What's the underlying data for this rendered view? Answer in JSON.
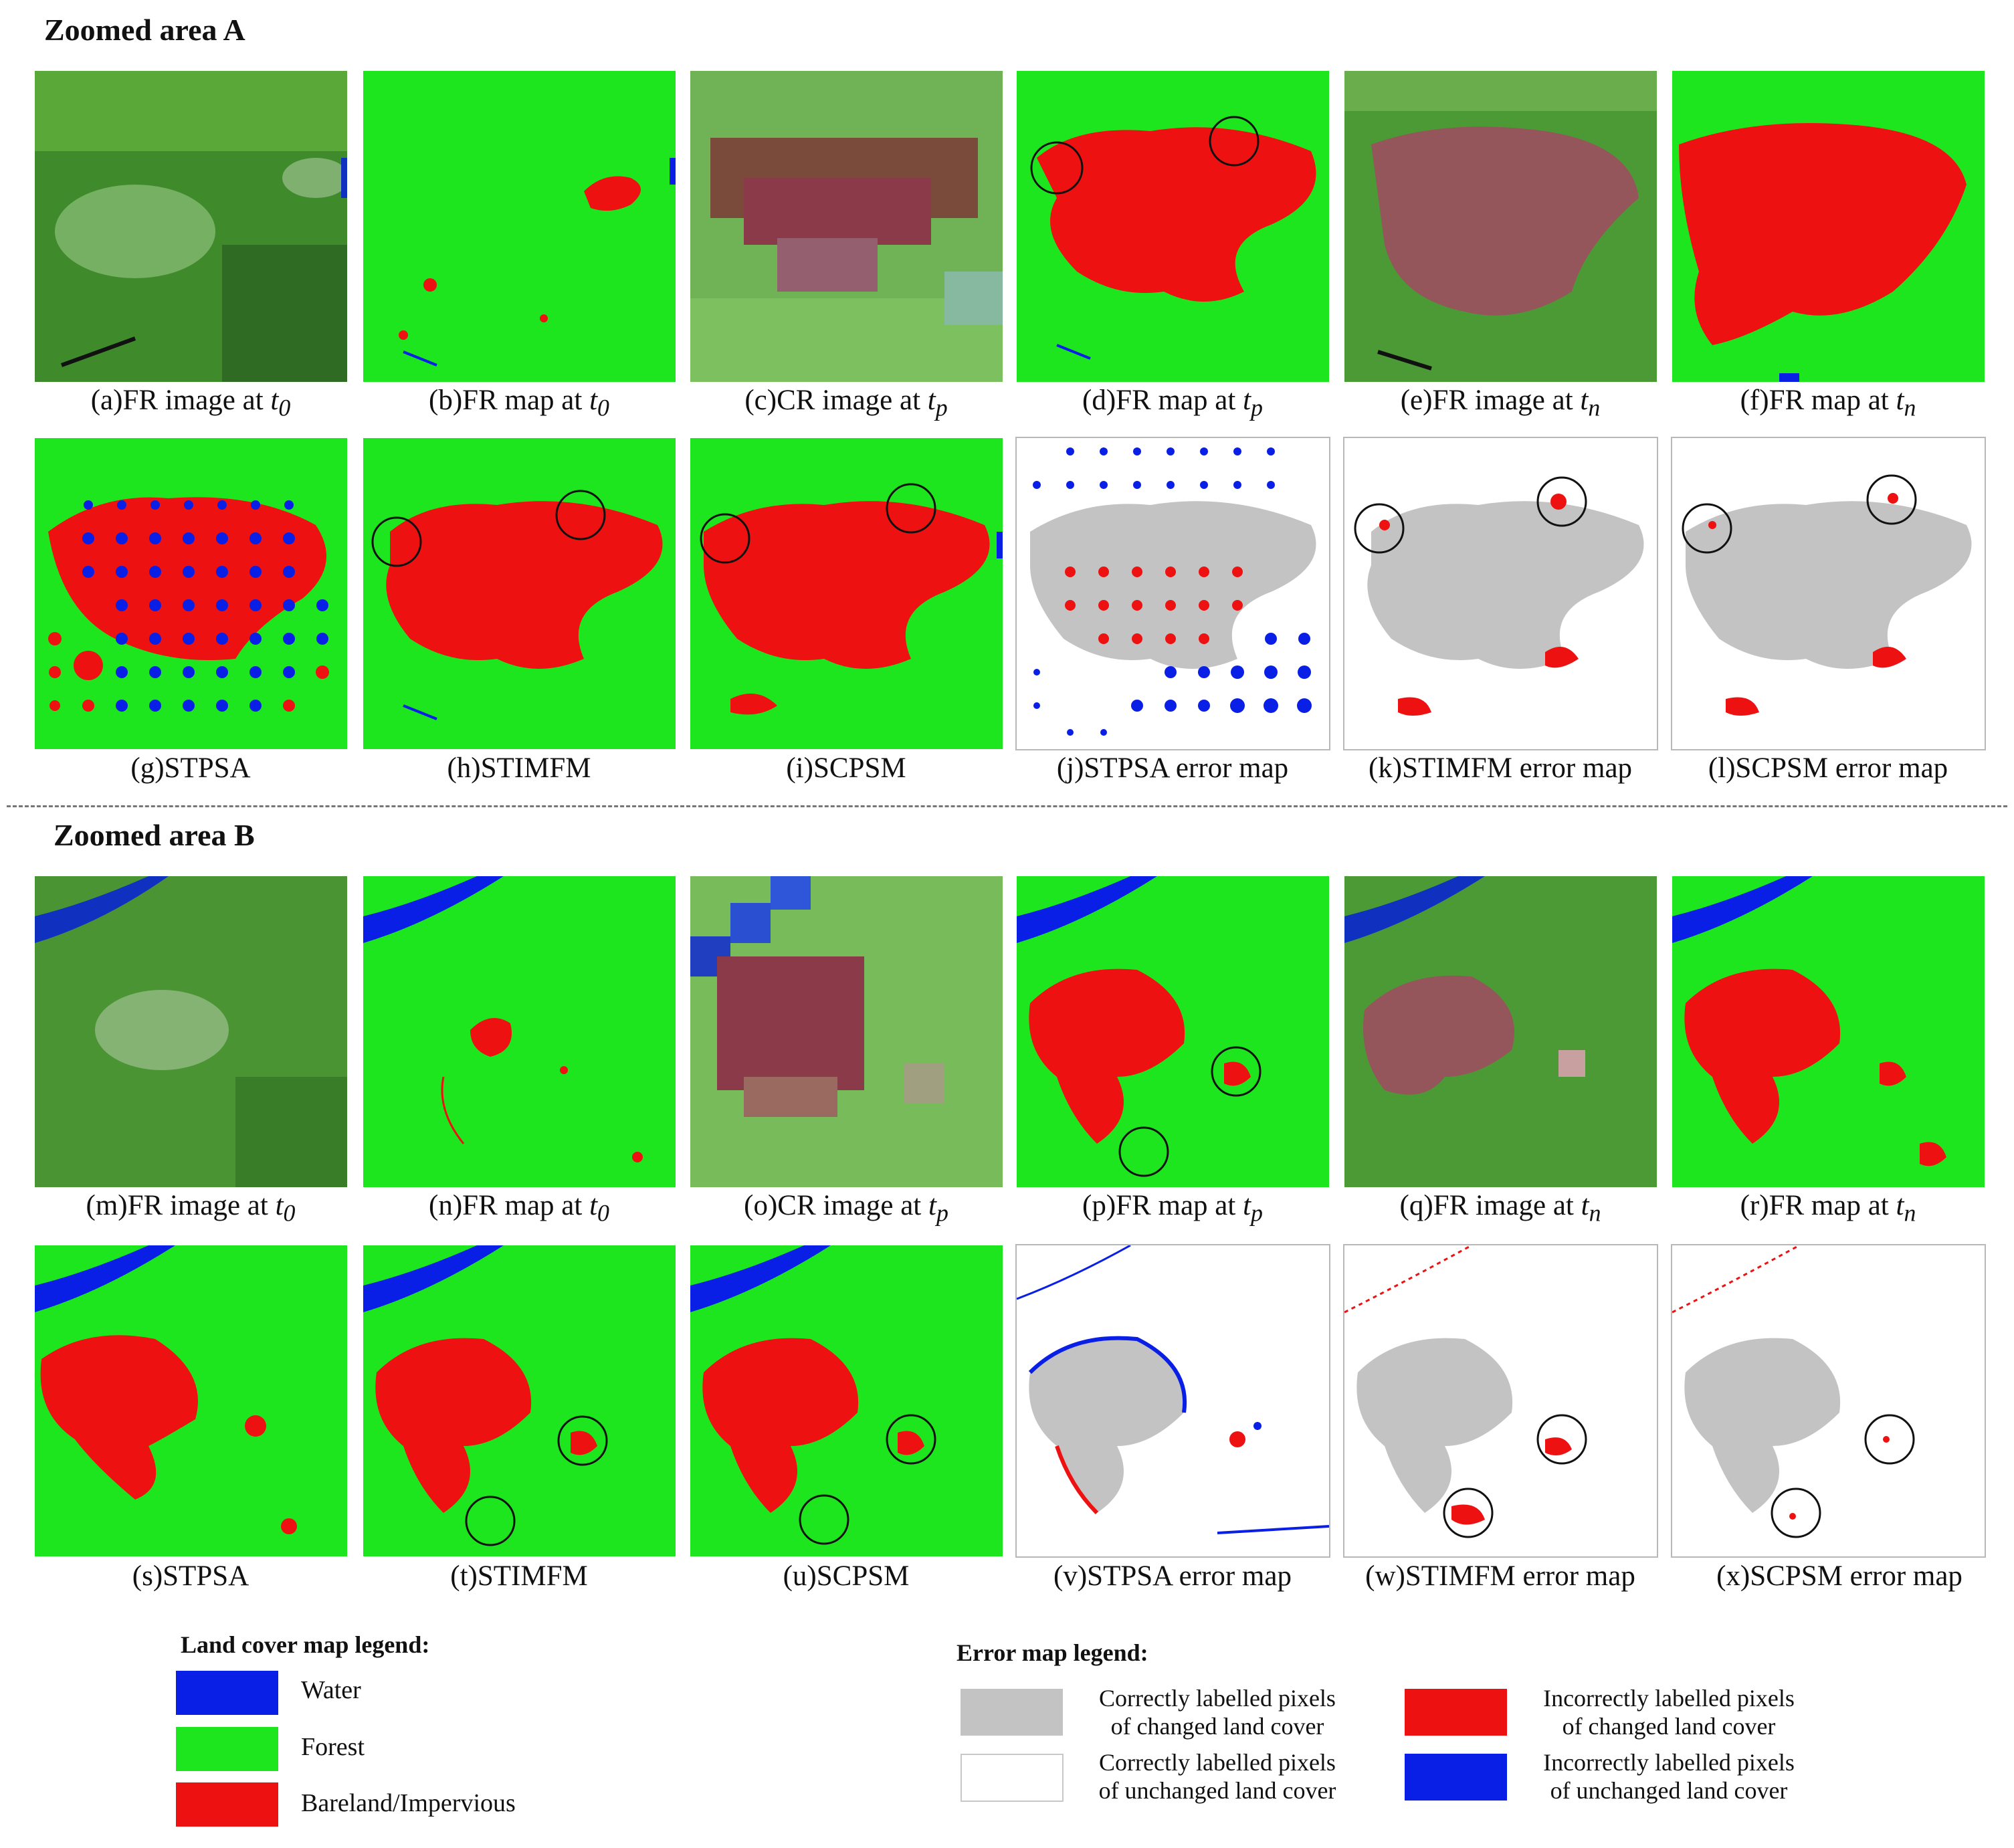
{
  "sections": {
    "a": "Zoomed  area A",
    "b": "Zoomed  area B"
  },
  "panels": [
    {
      "letter": "(a)",
      "text": "FR image at ",
      "sub": "t0"
    },
    {
      "letter": "(b)",
      "text": "FR map at ",
      "sub": "t0"
    },
    {
      "letter": "(c)",
      "text": "CR image at ",
      "sub": "tp"
    },
    {
      "letter": "(d)",
      "text": "FR map at ",
      "sub": "tp"
    },
    {
      "letter": "(e)",
      "text": "FR image at ",
      "sub": "tn"
    },
    {
      "letter": "(f)",
      "text": "FR map at ",
      "sub": "tn"
    },
    {
      "letter": "(g)",
      "text": "STPSA",
      "sub": ""
    },
    {
      "letter": "(h)",
      "text": "STIMFM",
      "sub": ""
    },
    {
      "letter": "(i)",
      "text": "SCPSM",
      "sub": ""
    },
    {
      "letter": "(j)",
      "text": "STPSA error map",
      "sub": ""
    },
    {
      "letter": "(k)",
      "text": "STIMFM error map",
      "sub": ""
    },
    {
      "letter": "(l)",
      "text": "SCPSM error map",
      "sub": ""
    },
    {
      "letter": "(m)",
      "text": "FR image at ",
      "sub": "t0"
    },
    {
      "letter": "(n)",
      "text": "FR map at ",
      "sub": "t0"
    },
    {
      "letter": "(o)",
      "text": "CR image at ",
      "sub": "tp"
    },
    {
      "letter": "(p)",
      "text": "FR map at ",
      "sub": "tp"
    },
    {
      "letter": "(q)",
      "text": "FR image at ",
      "sub": "tn"
    },
    {
      "letter": "(r)",
      "text": "FR map at ",
      "sub": "tn"
    },
    {
      "letter": "(s)",
      "text": "STPSA",
      "sub": ""
    },
    {
      "letter": "(t)",
      "text": "STIMFM",
      "sub": ""
    },
    {
      "letter": "(u)",
      "text": "SCPSM",
      "sub": ""
    },
    {
      "letter": "(v)",
      "text": "STPSA error map",
      "sub": ""
    },
    {
      "letter": "(w)",
      "text": "STIMFM error map",
      "sub": ""
    },
    {
      "letter": "(x)",
      "text": "SCPSM error map",
      "sub": ""
    }
  ],
  "land_legend": {
    "title": "Land cover map legend:",
    "items": [
      {
        "label": "Water",
        "color": "#0a1fe6"
      },
      {
        "label": "Forest",
        "color": "#1ee61e"
      },
      {
        "label": "Bareland/Impervious",
        "color": "#ee1111"
      }
    ]
  },
  "error_legend": {
    "title": "Error map legend:",
    "items": [
      {
        "line1": "Correctly labelled pixels",
        "line2": "of changed land cover",
        "color": "#c3c3c3"
      },
      {
        "line1": "Correctly labelled pixels",
        "line2": "of unchanged land cover",
        "color": "#ffffff"
      },
      {
        "line1": "Incorrectly labelled pixels",
        "line2": "of changed land cover",
        "color": "#ee1111"
      },
      {
        "line1": "Incorrectly labelled pixels",
        "line2": "of unchanged land cover",
        "color": "#0a1fe6"
      }
    ]
  }
}
